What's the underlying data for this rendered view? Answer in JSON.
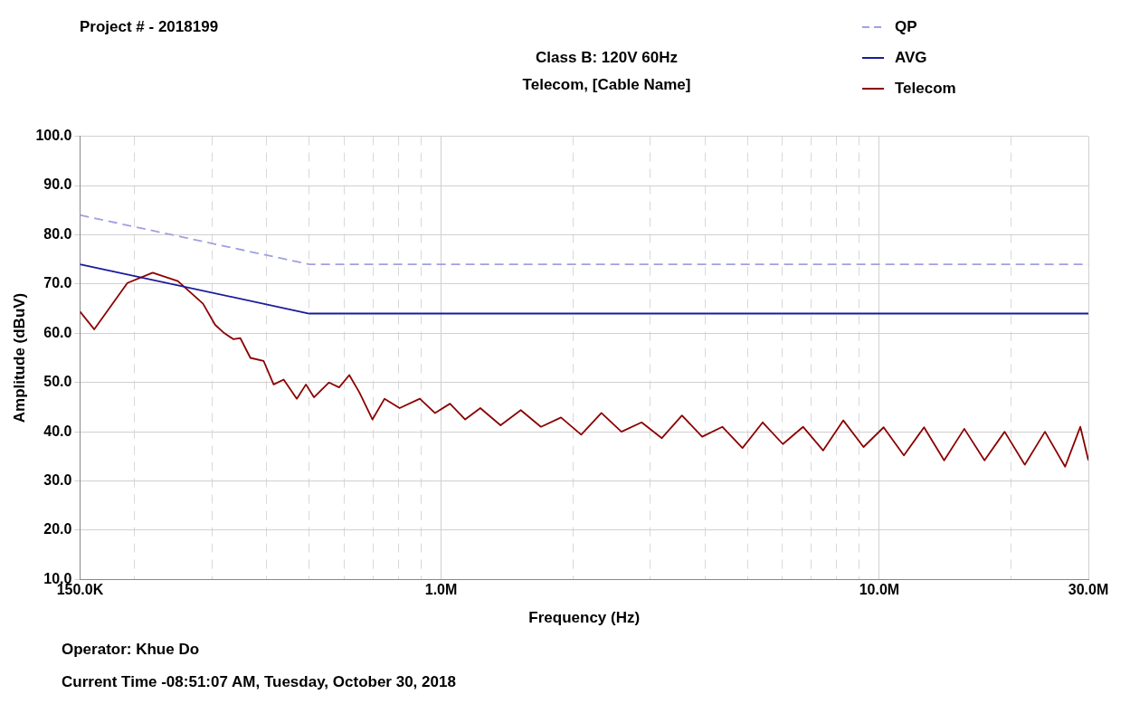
{
  "chart_data": {
    "type": "line",
    "title": "Class B: 120V 60Hz",
    "subtitle": "Telecom, [Cable Name]",
    "xlabel": "Frequency (Hz)",
    "ylabel": "Amplitude (dBuV)",
    "annotations": [
      "Project # - 2018199",
      "Operator: Khue Do",
      "Current Time -08:51:07 AM, Tuesday, October 30, 2018"
    ],
    "log": "x",
    "grid": true,
    "legend": "top right",
    "marker": "none",
    "xlim": [
      150000,
      30000000
    ],
    "xticks": [
      {
        "value": 150000,
        "label": "150.0K"
      },
      {
        "value": 200000,
        "label": null
      },
      {
        "value": 300000,
        "label": null
      },
      {
        "value": 400000,
        "label": null
      },
      {
        "value": 500000,
        "label": null
      },
      {
        "value": 600000,
        "label": null
      },
      {
        "value": 700000,
        "label": null
      },
      {
        "value": 800000,
        "label": null
      },
      {
        "value": 900000,
        "label": null
      },
      {
        "value": 1000000,
        "label": "1.0M"
      },
      {
        "value": 2000000,
        "label": null
      },
      {
        "value": 3000000,
        "label": null
      },
      {
        "value": 4000000,
        "label": null
      },
      {
        "value": 5000000,
        "label": null
      },
      {
        "value": 6000000,
        "label": null
      },
      {
        "value": 7000000,
        "label": null
      },
      {
        "value": 8000000,
        "label": null
      },
      {
        "value": 9000000,
        "label": null
      },
      {
        "value": 10000000,
        "label": "10.0M"
      },
      {
        "value": 20000000,
        "label": null
      },
      {
        "value": 30000000,
        "label": "30.0M"
      }
    ],
    "ylim": [
      10,
      100
    ],
    "yticks": [
      {
        "value": 10,
        "label": "10.0"
      },
      {
        "value": 20,
        "label": "20.0"
      },
      {
        "value": 30,
        "label": "30.0"
      },
      {
        "value": 40,
        "label": "40.0"
      },
      {
        "value": 50,
        "label": "50.0"
      },
      {
        "value": 60,
        "label": "60.0"
      },
      {
        "value": 70,
        "label": "70.0"
      },
      {
        "value": 80,
        "label": "80.0"
      },
      {
        "value": 90,
        "label": "90.0"
      },
      {
        "value": 100,
        "label": "100.0"
      }
    ],
    "series": [
      {
        "name": "QP",
        "color": "#a0a0e0",
        "line_style": "dashed",
        "x": [
          150000,
          500000,
          30000000
        ],
        "values": [
          84,
          74,
          74
        ]
      },
      {
        "name": "AVG",
        "color": "#1a1a9c",
        "line_style": "solid",
        "x": [
          150000,
          500000,
          30000000
        ],
        "values": [
          74,
          64,
          64
        ]
      },
      {
        "name": "Telecom",
        "color": "#8b0000",
        "line_style": "solid",
        "x": [
          150000,
          161600,
          192400,
          219700,
          250800,
          286300,
          305100,
          318300,
          335600,
          348300,
          367200,
          393500,
          414900,
          437400,
          468600,
          491600,
          512800,
          555100,
          585300,
          617400,
          651000,
          697400,
          743100,
          804300,
          894500,
          968300,
          1048000,
          1135000,
          1229000,
          1367000,
          1520000,
          1690000,
          1878000,
          2088000,
          2322000,
          2580000,
          2868000,
          3190000,
          3546000,
          3942000,
          4383000,
          4873000,
          5420000,
          6025000,
          6698000,
          7446000,
          8278000,
          9205000,
          10230000,
          11380000,
          12650000,
          14060000,
          15630000,
          17380000,
          19320000,
          21480000,
          23880000,
          26550000,
          28760000,
          30000000
        ],
        "values": [
          64.4,
          60.8,
          70.2,
          72.3,
          70.6,
          66,
          61.7,
          60.2,
          58.8,
          59,
          55,
          54.4,
          49.6,
          50.6,
          46.7,
          49.6,
          47,
          50,
          49,
          51.5,
          48,
          42.5,
          46.7,
          44.8,
          46.7,
          43.8,
          45.7,
          42.5,
          44.8,
          41.3,
          44.4,
          41,
          42.9,
          39.4,
          43.8,
          40,
          41.9,
          38.7,
          43.3,
          39,
          41,
          36.7,
          41.9,
          37.5,
          41,
          36.2,
          42.3,
          36.9,
          40.9,
          35.2,
          40.9,
          34.2,
          40.6,
          34.2,
          40,
          33.3,
          40,
          32.9,
          41,
          34.2
        ]
      }
    ]
  }
}
